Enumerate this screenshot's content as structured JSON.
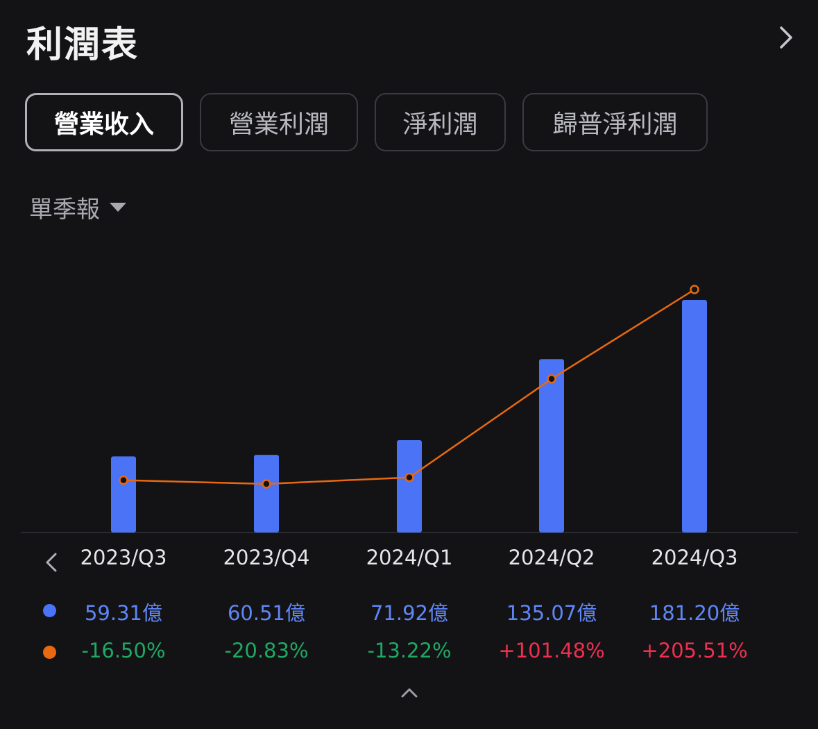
{
  "header": {
    "title": "利潤表"
  },
  "tabs": [
    {
      "label": "營業收入",
      "active": true
    },
    {
      "label": "營業利潤",
      "active": false
    },
    {
      "label": "淨利潤",
      "active": false
    },
    {
      "label": "歸普淨利潤",
      "active": false
    }
  ],
  "period_selector": {
    "label": "單季報"
  },
  "colors": {
    "bar": "#4a73f6",
    "line": "#e8690f",
    "positive": "#ef2f4f",
    "negative": "#1fa864",
    "revenue_text": "#5f86f7"
  },
  "chart_data": {
    "type": "bar",
    "categories": [
      "2023/Q3",
      "2023/Q4",
      "2024/Q1",
      "2024/Q2",
      "2024/Q3"
    ],
    "series": [
      {
        "type": "bar",
        "unit": "億",
        "values": [
          59.31,
          60.51,
          71.92,
          135.07,
          181.2
        ],
        "labels": [
          "59.31億",
          "60.51億",
          "71.92億",
          "135.07億",
          "181.20億"
        ]
      },
      {
        "type": "line",
        "unit": "%",
        "values": [
          -16.5,
          -20.83,
          -13.22,
          101.48,
          205.51
        ],
        "labels": [
          "-16.50%",
          "-20.83%",
          "-13.22%",
          "+101.48%",
          "+205.51%"
        ]
      }
    ],
    "legend": "left-rows"
  }
}
